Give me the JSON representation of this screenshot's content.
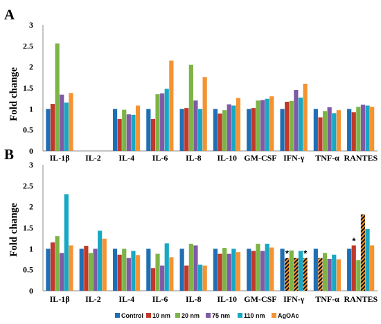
{
  "colors": {
    "Control": "#1f6fb4",
    "10 nm": "#c0392b",
    "20 nm": "#7db446",
    "75 nm": "#7f5aa6",
    "110 nm": "#17a8c4",
    "AgOAc": "#f59332",
    "hatch": "#111111",
    "axis": "#888888"
  },
  "legend": [
    "Control",
    "10 nm",
    "20 nm",
    "75 nm",
    "110 nm",
    "AgOAc"
  ],
  "chart_data": [
    {
      "type": "bar",
      "panel": "A",
      "title": "",
      "xlabel": "",
      "ylabel": "Fold change",
      "ylim": [
        0,
        3
      ],
      "yticks": [
        "0",
        "0.5",
        "1",
        "1.5",
        "2",
        "2.5",
        "3"
      ],
      "categories": [
        "IL-1β",
        "IL-2",
        "IL-4",
        "IL-6",
        "IL-8",
        "IL-10",
        "GM-CSF",
        "IFN-γ",
        "TNF-α",
        "RANTES"
      ],
      "series": [
        {
          "name": "Control",
          "values": [
            1,
            null,
            1,
            1,
            1,
            1,
            1,
            1,
            1,
            1
          ]
        },
        {
          "name": "10 nm",
          "values": [
            1.12,
            null,
            0.76,
            0.76,
            1.02,
            0.89,
            1.02,
            1.17,
            0.8,
            0.92
          ]
        },
        {
          "name": "20 nm",
          "values": [
            2.56,
            null,
            0.98,
            1.35,
            2.05,
            0.97,
            1.2,
            1.19,
            0.95,
            1.05
          ]
        },
        {
          "name": "75 nm",
          "values": [
            1.34,
            null,
            0.87,
            1.37,
            1.2,
            1.11,
            1.21,
            1.45,
            1.04,
            1.1
          ]
        },
        {
          "name": "110 nm",
          "values": [
            1.15,
            null,
            0.86,
            1.48,
            1.0,
            1.08,
            1.24,
            1.27,
            0.9,
            1.08
          ]
        },
        {
          "name": "AgOAc",
          "values": [
            1.38,
            null,
            1.08,
            2.15,
            1.76,
            1.26,
            1.3,
            1.6,
            0.97,
            1.05
          ]
        }
      ],
      "hatched": [],
      "annotations": []
    },
    {
      "type": "bar",
      "panel": "B",
      "title": "",
      "xlabel": "",
      "ylabel": "Fold change",
      "ylim": [
        0,
        3
      ],
      "yticks": [
        "0",
        "0.5",
        "1",
        "1.5",
        "2",
        "2.5",
        "3"
      ],
      "categories": [
        "IL-1β",
        "IL-2",
        "IL-4",
        "IL-6",
        "IL-8",
        "IL-10",
        "GM-CSF",
        "IFN-γ",
        "TNF-α",
        "RANTES"
      ],
      "series": [
        {
          "name": "Control",
          "values": [
            1,
            1,
            1,
            1,
            1,
            1,
            1,
            1,
            1,
            1
          ]
        },
        {
          "name": "10 nm",
          "values": [
            1.15,
            1.07,
            0.86,
            0.54,
            0.6,
            0.88,
            0.95,
            0.78,
            0.78,
            1.08
          ]
        },
        {
          "name": "20 nm",
          "values": [
            1.3,
            0.9,
            1.0,
            0.88,
            1.12,
            1.02,
            1.12,
            0.96,
            0.9,
            0.73
          ]
        },
        {
          "name": "75 nm",
          "values": [
            0.9,
            1.0,
            0.78,
            0.6,
            1.08,
            0.88,
            0.95,
            0.78,
            0.76,
            1.82
          ]
        },
        {
          "name": "110 nm",
          "values": [
            2.3,
            1.43,
            0.95,
            1.13,
            0.62,
            1.0,
            1.12,
            0.95,
            0.86,
            1.47
          ]
        },
        {
          "name": "AgOAc",
          "values": [
            1.08,
            1.24,
            0.85,
            0.8,
            0.6,
            0.92,
            1.03,
            0.78,
            0.75,
            1.08
          ]
        }
      ],
      "hatched": [
        [
          7,
          1
        ],
        [
          7,
          3
        ],
        [
          7,
          5
        ],
        [
          8,
          1
        ],
        [
          9,
          3
        ]
      ],
      "annotations": [
        {
          "text": "*",
          "category": 7,
          "series": 1
        },
        {
          "text": "*",
          "category": 7,
          "series": 5
        },
        {
          "text": "*",
          "category": 9,
          "series": 1
        }
      ]
    }
  ]
}
